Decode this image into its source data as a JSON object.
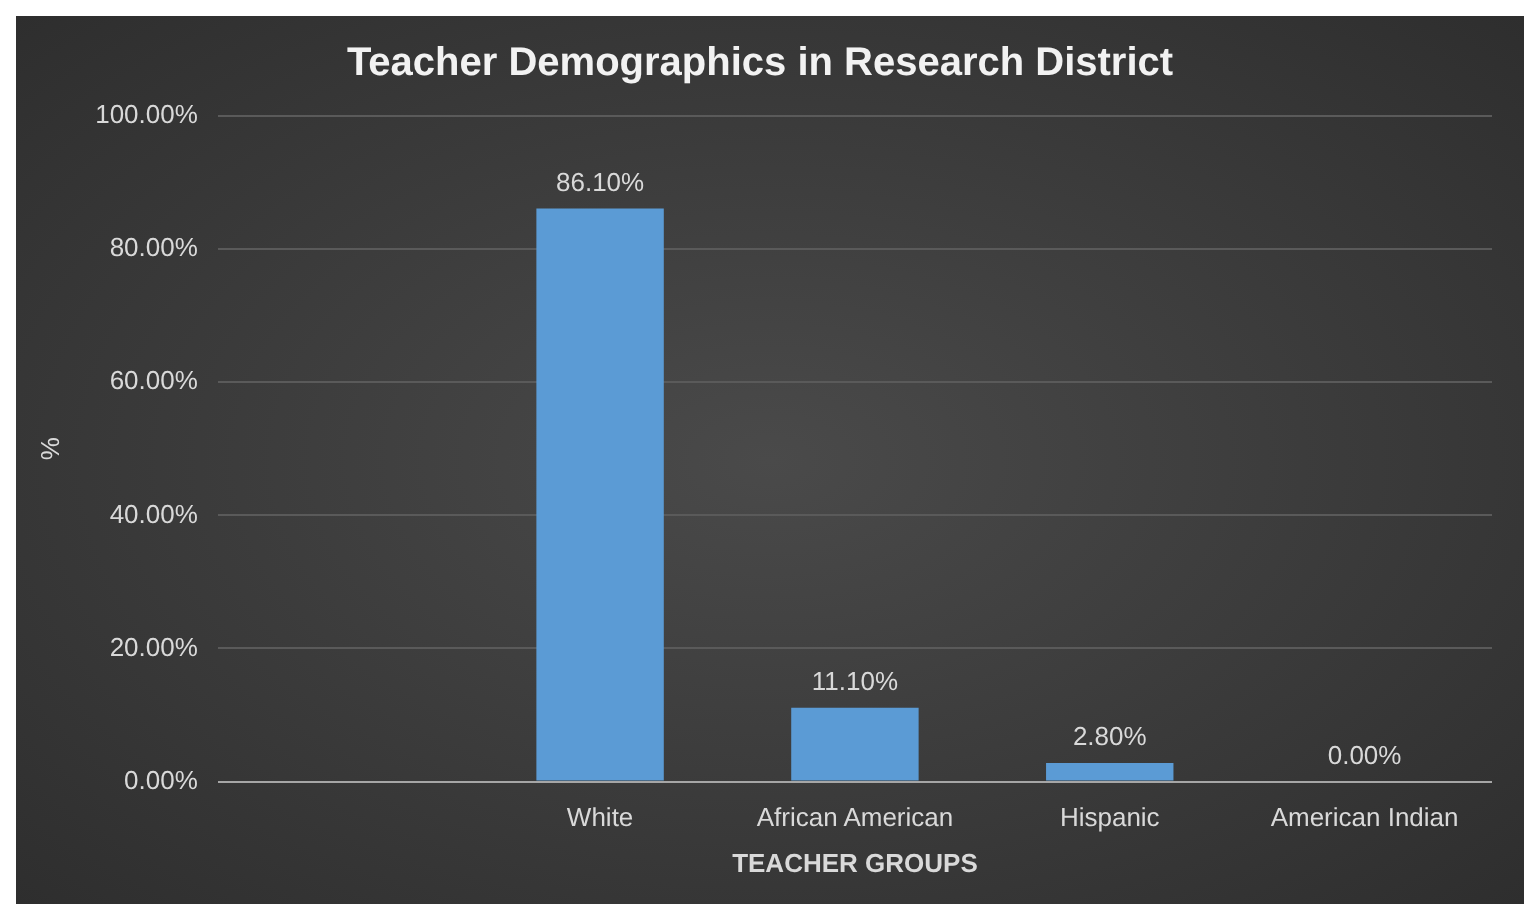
{
  "chart_data": {
    "type": "bar",
    "title": "Teacher Demographics in Research District",
    "xlabel": "TEACHER GROUPS",
    "ylabel": "%",
    "categories": [
      null,
      "White",
      "African American",
      "Hispanic",
      "American Indian"
    ],
    "values": [
      null,
      86.1,
      11.1,
      2.8,
      0
    ],
    "value_labels": [
      null,
      "86.10%",
      "11.10%",
      "2.80%",
      "0.00%"
    ],
    "color": "#5b9bd5",
    "ylim": [
      0,
      100
    ],
    "yticks": [
      {
        "value": 0,
        "label": "0.00%"
      },
      {
        "value": 20,
        "label": "20.00%"
      },
      {
        "value": 40,
        "label": "40.00%"
      },
      {
        "value": 60,
        "label": "60.00%"
      },
      {
        "value": 80,
        "label": "80.00%"
      },
      {
        "value": 100,
        "label": "100.00%"
      }
    ],
    "grid": "y",
    "legend": false
  }
}
